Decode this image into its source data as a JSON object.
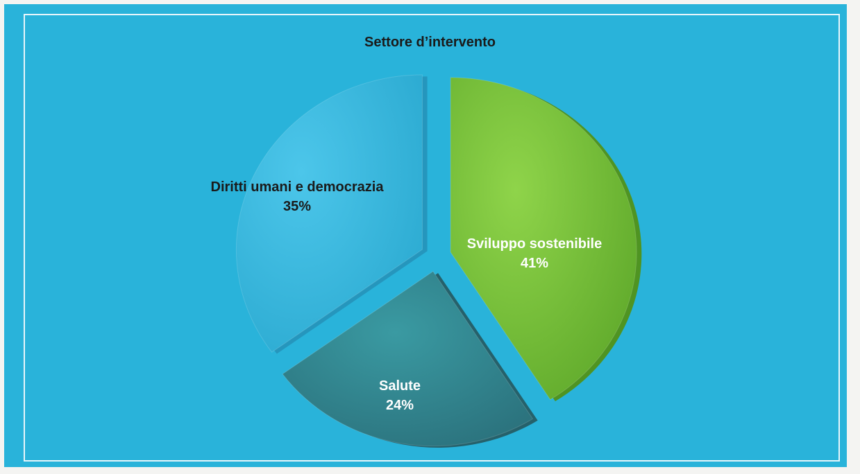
{
  "chart_data": {
    "type": "pie",
    "title": "Settore d’intervento",
    "slices": [
      {
        "label": "Sviluppo sostenibile",
        "value": 41,
        "value_label": "41%",
        "color": "#78c13c",
        "text_color": "#ffffff"
      },
      {
        "label": "Salute",
        "value": 24,
        "value_label": "24%",
        "color": "#2f8690",
        "text_color": "#ffffff"
      },
      {
        "label": "Diritti umani e democrazia",
        "value": 35,
        "value_label": "35%",
        "color": "#3cb9df",
        "text_color": "#1a1a1a"
      }
    ],
    "exploded": true,
    "style": "3d",
    "background_color": "#29b3da"
  }
}
